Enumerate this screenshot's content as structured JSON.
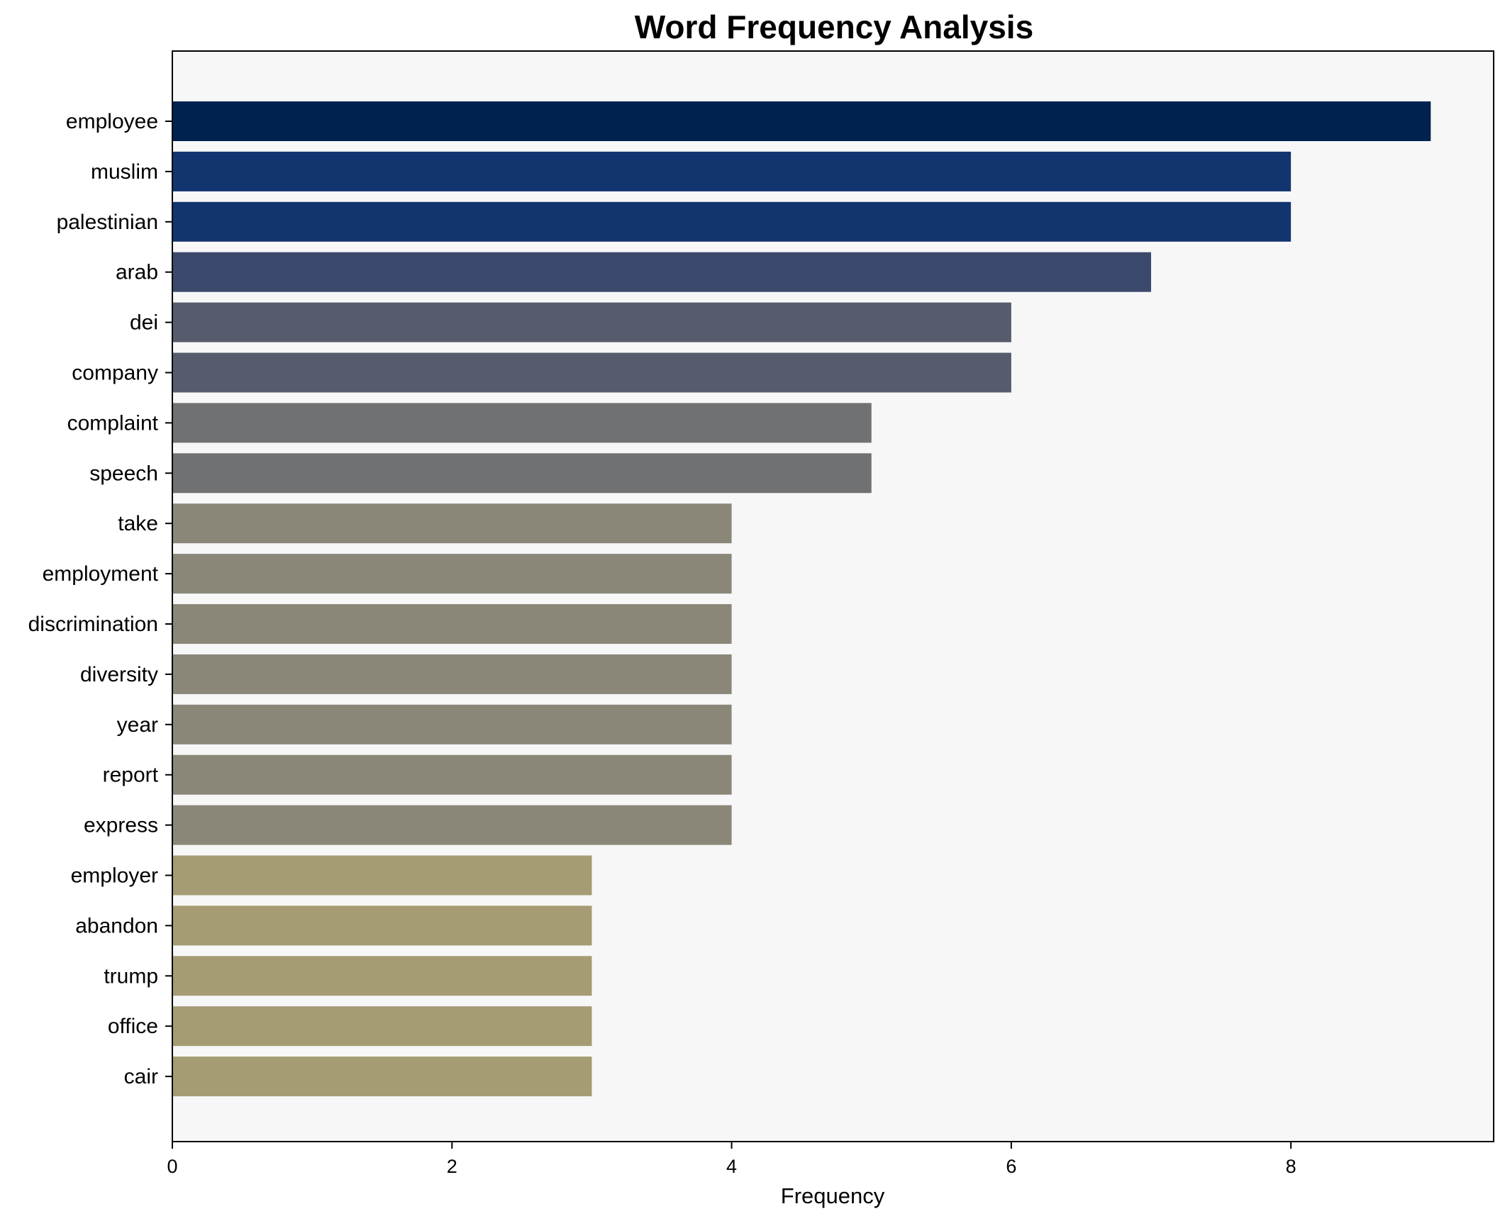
{
  "chart_data": {
    "type": "bar",
    "orientation": "horizontal",
    "title": "Word Frequency Analysis",
    "xlabel": "Frequency",
    "ylabel": "",
    "xlim": [
      0,
      9.45
    ],
    "xticks": [
      0,
      2,
      4,
      6,
      8
    ],
    "grid": false,
    "legend": "none",
    "categories": [
      "employee",
      "muslim",
      "palestinian",
      "arab",
      "dei",
      "company",
      "complaint",
      "speech",
      "take",
      "employment",
      "discrimination",
      "diversity",
      "year",
      "report",
      "express",
      "employer",
      "abandon",
      "trump",
      "office",
      "cair"
    ],
    "values": [
      9,
      8,
      8,
      7,
      6,
      6,
      5,
      5,
      4,
      4,
      4,
      4,
      4,
      4,
      4,
      3,
      3,
      3,
      3,
      3
    ],
    "colors": {
      "9": "#00224e",
      "8": "#123570",
      "7": "#3b496c",
      "6": "#575c6d",
      "5": "#707173",
      "4": "#8a8779",
      "3": "#a59c74"
    },
    "plot_background": "#f7f7f7"
  }
}
